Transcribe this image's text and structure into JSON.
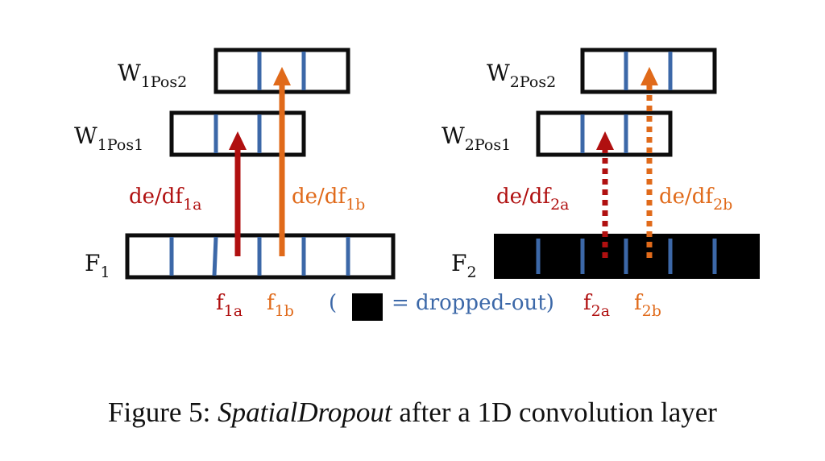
{
  "colors": {
    "outline": "#0d0d0d",
    "channel": "#3c68a8",
    "grad_a": "#b01010",
    "grad_b": "#e06a1a",
    "dropped": "#000000",
    "legend_text": "#3c68a8"
  },
  "left": {
    "w_pos2": {
      "base": "W",
      "sub": "1Pos2"
    },
    "w_pos1": {
      "base": "W",
      "sub": "1Pos1"
    },
    "feature": {
      "base": "F",
      "sub": "1"
    },
    "grad_a": {
      "base": "de/df",
      "sub": "1a"
    },
    "grad_b": {
      "base": "de/df",
      "sub": "1b"
    },
    "f_a": {
      "base": "f",
      "sub": "1a"
    },
    "f_b": {
      "base": "f",
      "sub": "1b"
    }
  },
  "right": {
    "w_pos2": {
      "base": "W",
      "sub": "2Pos2"
    },
    "w_pos1": {
      "base": "W",
      "sub": "2Pos1"
    },
    "feature": {
      "base": "F",
      "sub": "2"
    },
    "grad_a": {
      "base": "de/df",
      "sub": "2a"
    },
    "grad_b": {
      "base": "de/df",
      "sub": "2b"
    },
    "f_a": {
      "base": "f",
      "sub": "2a"
    },
    "f_b": {
      "base": "f",
      "sub": "2b"
    }
  },
  "legend": {
    "open_paren": "(",
    "text": "= dropped-out)"
  },
  "caption": {
    "prefix": "Figure 5: ",
    "emph": "SpatialDropout",
    "suffix": " after a 1D convolution layer"
  }
}
